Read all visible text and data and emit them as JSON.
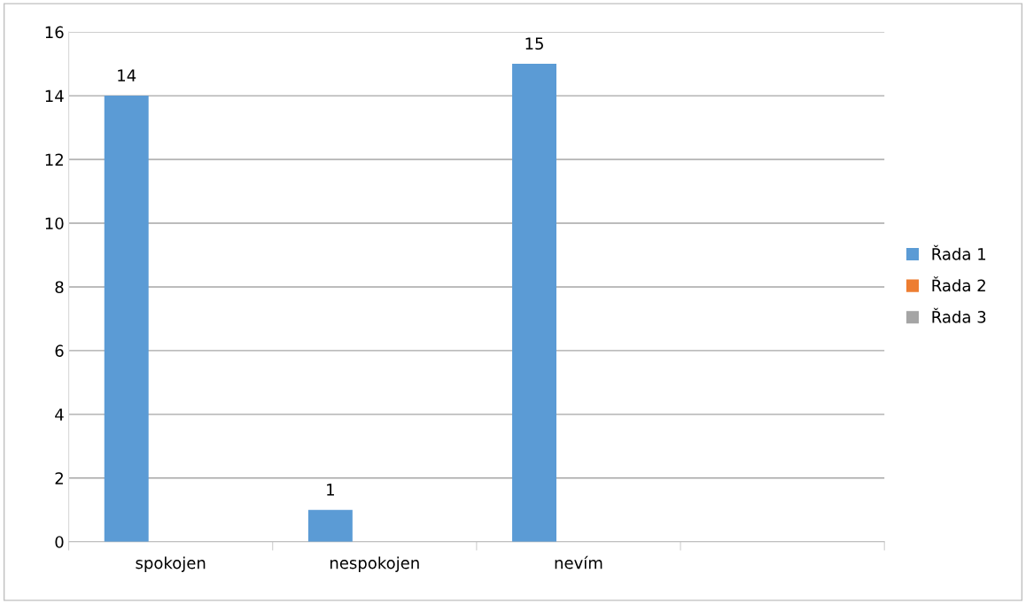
{
  "chart_data": {
    "type": "bar",
    "categories": [
      "spokojen",
      "nespokojen",
      "nevím",
      null
    ],
    "series": [
      {
        "name": "Řada 1",
        "color": "#5b9bd5",
        "values": [
          14,
          1,
          15,
          null
        ]
      },
      {
        "name": "Řada 2",
        "color": "#ed7d31",
        "values": [
          null,
          null,
          null,
          null
        ]
      },
      {
        "name": "Řada 3",
        "color": "#a5a5a5",
        "values": [
          null,
          null,
          null,
          null
        ]
      }
    ],
    "ylim": [
      0,
      16
    ],
    "yticks": [
      0,
      2,
      4,
      6,
      8,
      10,
      12,
      14,
      16
    ],
    "grid": "y",
    "legend": "right",
    "data_labels": true
  }
}
